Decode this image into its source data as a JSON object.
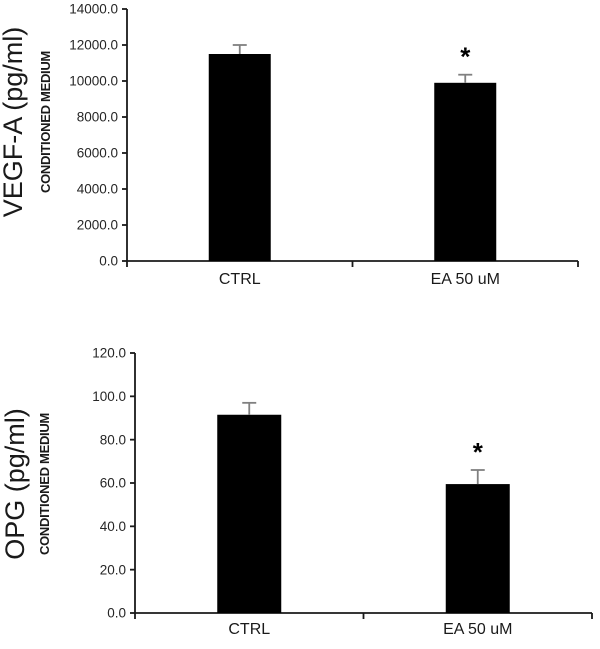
{
  "figure": {
    "background": "#ffffff"
  },
  "chart_data": [
    {
      "type": "bar",
      "title": "",
      "ylabel": "VEGF-A (pg/ml)",
      "ylabel_sub": "CONDITIONED MEDIUM",
      "xlabel": "",
      "categories": [
        "CTRL",
        "EA 50 uM"
      ],
      "values": [
        11500,
        9900
      ],
      "error_bars": [
        500,
        450
      ],
      "significance": [
        "",
        "*"
      ],
      "ylim": [
        0,
        14000
      ],
      "ytick_step": 2000,
      "ytick_decimals": 1,
      "bar_color": "#000000",
      "error_color": "#808080",
      "axis_color": "#1a1a1a",
      "text_color": "#262626",
      "grid": false,
      "legend": false
    },
    {
      "type": "bar",
      "title": "",
      "ylabel": "OPG (pg/ml)",
      "ylabel_sub": "CONDITIONED MEDIUM",
      "xlabel": "",
      "categories": [
        "CTRL",
        "EA 50 uM"
      ],
      "values": [
        91.5,
        59.5
      ],
      "error_bars": [
        5.5,
        6.5
      ],
      "significance": [
        "",
        "*"
      ],
      "ylim": [
        0,
        120
      ],
      "ytick_step": 20,
      "ytick_decimals": 1,
      "bar_color": "#000000",
      "error_color": "#808080",
      "axis_color": "#1a1a1a",
      "text_color": "#262626",
      "grid": false,
      "legend": false
    }
  ]
}
